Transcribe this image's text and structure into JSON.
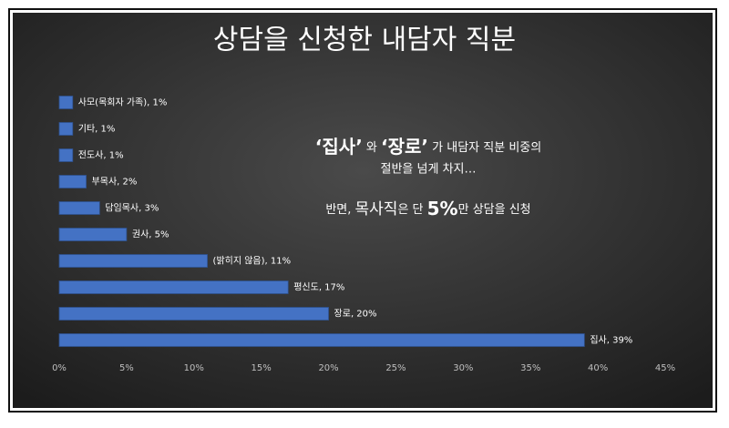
{
  "chart_data": {
    "type": "bar",
    "orientation": "horizontal",
    "title": "상담을 신청한 내담자 직분",
    "values": [
      1,
      1,
      1,
      2,
      3,
      5,
      11,
      17,
      20,
      39
    ],
    "value_labels": [
      "사모(목회자 가족), 1%",
      "기타, 1%",
      "전도사, 1%",
      "부목사, 2%",
      "담임목사, 3%",
      "권사, 5%",
      "(밝히지 않음), 11%",
      "평신도, 17%",
      "장로, 20%",
      "집사, 39%"
    ],
    "color": "#4472c4",
    "xlim": [
      0,
      45
    ],
    "xticks": [
      {
        "value": 0,
        "label": "0%"
      },
      {
        "value": 5,
        "label": "5%"
      },
      {
        "value": 10,
        "label": "10%"
      },
      {
        "value": 15,
        "label": "15%"
      },
      {
        "value": 20,
        "label": "20%"
      },
      {
        "value": 25,
        "label": "25%"
      },
      {
        "value": 30,
        "label": "30%"
      },
      {
        "value": 35,
        "label": "35%"
      },
      {
        "value": 40,
        "label": "40%"
      },
      {
        "value": 45,
        "label": "45%"
      }
    ],
    "grid": false,
    "annotations": [
      [
        "‘집사’",
        " 와 ",
        "‘장로’",
        " 가 내담자 직분 비중의"
      ],
      [
        "절반을 넘게 차지…"
      ],
      [
        "반면, ",
        "목사직",
        "은 단 ",
        "5%",
        "만 상담을 신청"
      ]
    ]
  }
}
